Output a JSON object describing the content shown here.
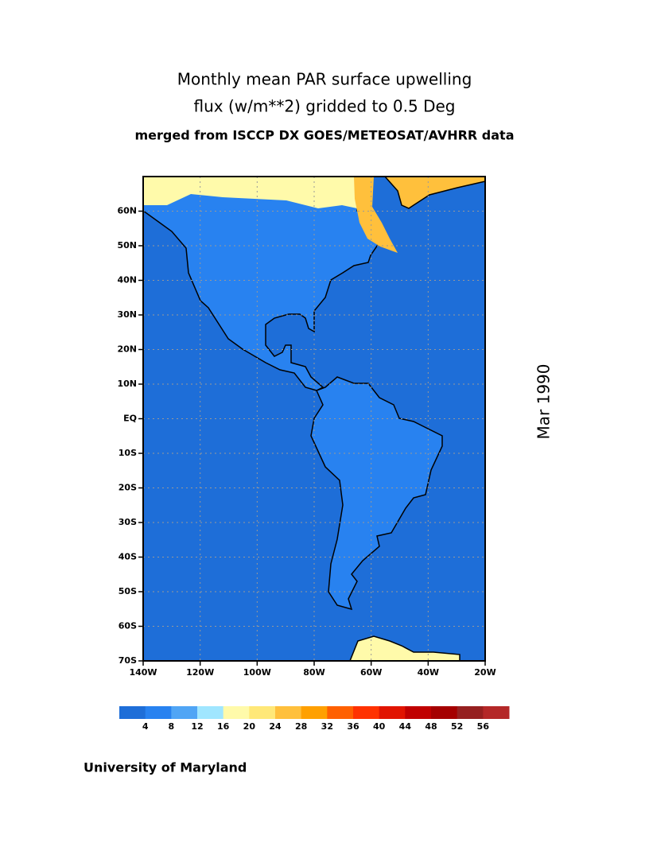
{
  "title": {
    "lines": [
      "Monthly mean PAR surface upwelling",
      "flux (w/m**2) gridded to 0.5 Deg"
    ],
    "subtitle": "merged from ISCCP DX GOES/METEOSAT/AVHRR data"
  },
  "map": {
    "xlim": [
      -140,
      -20
    ],
    "ylim": [
      -70,
      70
    ],
    "xticks": [
      {
        "value": -140,
        "label": "140W"
      },
      {
        "value": -120,
        "label": "120W"
      },
      {
        "value": -100,
        "label": "100W"
      },
      {
        "value": -80,
        "label": "80W"
      },
      {
        "value": -60,
        "label": "60W"
      },
      {
        "value": -40,
        "label": "40W"
      },
      {
        "value": -20,
        "label": "20W"
      }
    ],
    "yticks": [
      {
        "value": -70,
        "label": "70S"
      },
      {
        "value": -60,
        "label": "60S"
      },
      {
        "value": -50,
        "label": "50S"
      },
      {
        "value": -40,
        "label": "40S"
      },
      {
        "value": -30,
        "label": "30S"
      },
      {
        "value": -20,
        "label": "20S"
      },
      {
        "value": -10,
        "label": "10S"
      },
      {
        "value": 0,
        "label": "EQ"
      },
      {
        "value": 10,
        "label": "10N"
      },
      {
        "value": 20,
        "label": "20N"
      },
      {
        "value": 30,
        "label": "30N"
      },
      {
        "value": 40,
        "label": "40N"
      },
      {
        "value": 50,
        "label": "50N"
      },
      {
        "value": 60,
        "label": "60N"
      }
    ]
  },
  "colorbar": {
    "levels": [
      4,
      8,
      12,
      16,
      20,
      24,
      28,
      32,
      36,
      40,
      44,
      48,
      52,
      56
    ],
    "colors": [
      "#1e6ed8",
      "#2882f0",
      "#50a5f5",
      "#a0e6ff",
      "#fffaaa",
      "#ffe878",
      "#ffc03c",
      "#ffa000",
      "#ff6000",
      "#ff3200",
      "#e11400",
      "#c00000",
      "#a50000",
      "#962020",
      "#b42828"
    ]
  },
  "date_label": "Mar 1990",
  "footer": "University of Maryland"
}
